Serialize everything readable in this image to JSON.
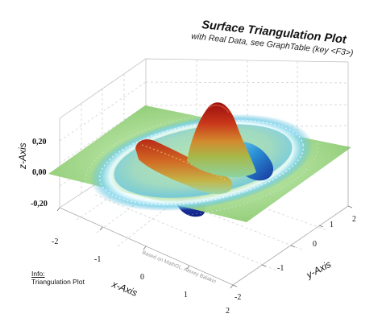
{
  "chart_data": {
    "type": "surface-3d",
    "title": "Surface Triangulation Plot",
    "subtitle": "with Real Data, see GraphTable (key <F3>)",
    "xlabel": "x-Axis",
    "ylabel": "y-Axis",
    "zlabel": "z-Axis",
    "x_ticks": [
      "-2",
      "-1",
      "0",
      "1",
      "2"
    ],
    "y_ticks": [
      "-2",
      "-1",
      "0",
      "1",
      "2"
    ],
    "z_ticks": [
      "-0,20",
      "0,00",
      "0,20"
    ],
    "xlim": [
      -2,
      2
    ],
    "ylim": [
      -2,
      2
    ],
    "zlim": [
      -0.35,
      0.35
    ],
    "grid": true,
    "colormap": [
      "#1a3fb0",
      "#2b8fd8",
      "#7fd6f2",
      "#bfe8a6",
      "#8ec66a",
      "#c9a23a",
      "#c8561e",
      "#a31010"
    ],
    "credit": "Based on MathGL, Alexey Balakin"
  },
  "info": {
    "label": "Info:",
    "text": "Triangulation Plot"
  }
}
